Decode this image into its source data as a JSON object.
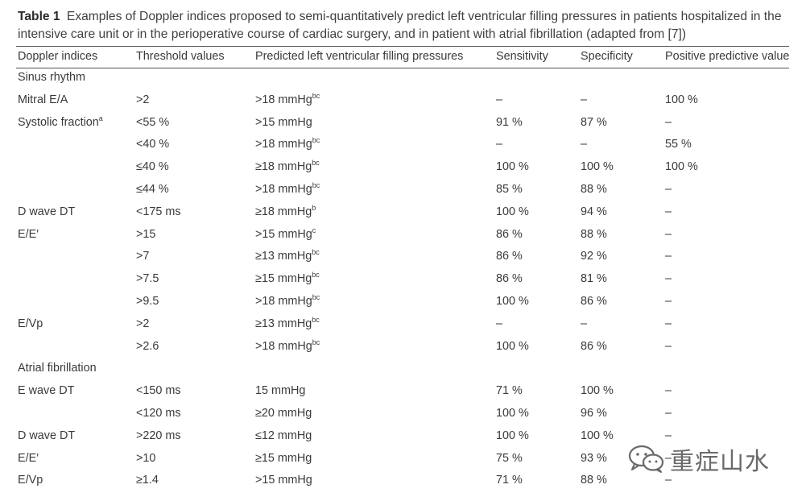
{
  "caption": {
    "label": "Table 1",
    "text": "Examples of Doppler indices proposed to semi-quantitatively predict left ventricular filling pressures in patients hospitalized in the intensive care unit or in the perioperative course of cardiac surgery, and in patient with atrial fibrillation (adapted from [7])"
  },
  "headers": {
    "doppler_indices": "Doppler indices",
    "threshold_values": "Threshold values",
    "predicted_pressures": "Predicted left ventricular filling pressures",
    "sensitivity": "Sensitivity",
    "specificity": "Specificity",
    "ppv": "Positive predictive value"
  },
  "sections": [
    {
      "title": "Sinus rhythm",
      "rows": [
        {
          "index": "Mitral E/A",
          "index_sup": "",
          "threshold": ">2",
          "pressure": ">18 mmHg",
          "pressure_sup": "bc",
          "sensitivity": "–",
          "specificity": "–",
          "ppv": "100 %"
        },
        {
          "index": "Systolic fraction",
          "index_sup": "a",
          "threshold": "<55 %",
          "pressure": ">15 mmHg",
          "pressure_sup": "",
          "sensitivity": "91 %",
          "specificity": "87 %",
          "ppv": "–"
        },
        {
          "index": "",
          "index_sup": "",
          "threshold": "<40 %",
          "pressure": ">18 mmHg",
          "pressure_sup": "bc",
          "sensitivity": "–",
          "specificity": "–",
          "ppv": "55 %"
        },
        {
          "index": "",
          "index_sup": "",
          "threshold": "≤40 %",
          "pressure": "≥18 mmHg",
          "pressure_sup": "bc",
          "sensitivity": "100 %",
          "specificity": "100 %",
          "ppv": "100 %"
        },
        {
          "index": "",
          "index_sup": "",
          "threshold": "≤44 %",
          "pressure": ">18 mmHg",
          "pressure_sup": "bc",
          "sensitivity": "85 %",
          "specificity": "88 %",
          "ppv": "–"
        },
        {
          "index": "D wave DT",
          "index_sup": "",
          "threshold": "<175 ms",
          "pressure": "≥18 mmHg",
          "pressure_sup": "b",
          "sensitivity": "100 %",
          "specificity": "94 %",
          "ppv": "–"
        },
        {
          "index": "E/E′",
          "index_sup": "",
          "threshold": ">15",
          "pressure": ">15 mmHg",
          "pressure_sup": "c",
          "sensitivity": "86 %",
          "specificity": "88 %",
          "ppv": "–"
        },
        {
          "index": "",
          "index_sup": "",
          "threshold": ">7",
          "pressure": "≥13 mmHg",
          "pressure_sup": "bc",
          "sensitivity": "86 %",
          "specificity": "92 %",
          "ppv": "–"
        },
        {
          "index": "",
          "index_sup": "",
          "threshold": ">7.5",
          "pressure": "≥15 mmHg",
          "pressure_sup": "bc",
          "sensitivity": "86 %",
          "specificity": "81 %",
          "ppv": "–"
        },
        {
          "index": "",
          "index_sup": "",
          "threshold": ">9.5",
          "pressure": ">18 mmHg",
          "pressure_sup": "bc",
          "sensitivity": "100 %",
          "specificity": "86 %",
          "ppv": "–"
        },
        {
          "index": "E/Vp",
          "index_sup": "",
          "threshold": ">2",
          "pressure": "≥13 mmHg",
          "pressure_sup": "bc",
          "sensitivity": "–",
          "specificity": "–",
          "ppv": "–"
        },
        {
          "index": "",
          "index_sup": "",
          "threshold": ">2.6",
          "pressure": ">18 mmHg",
          "pressure_sup": "bc",
          "sensitivity": "100 %",
          "specificity": "86 %",
          "ppv": "–"
        }
      ]
    },
    {
      "title": "Atrial fibrillation",
      "rows": [
        {
          "index": "E wave DT",
          "index_sup": "",
          "threshold": "<150 ms",
          "pressure": "15 mmHg",
          "pressure_sup": "",
          "sensitivity": "71 %",
          "specificity": "100 %",
          "ppv": "–"
        },
        {
          "index": "",
          "index_sup": "",
          "threshold": "<120 ms",
          "pressure": "≥20 mmHg",
          "pressure_sup": "",
          "sensitivity": "100 %",
          "specificity": "96 %",
          "ppv": "–"
        },
        {
          "index": "D wave DT",
          "index_sup": "",
          "threshold": ">220 ms",
          "pressure": "≤12 mmHg",
          "pressure_sup": "",
          "sensitivity": "100 %",
          "specificity": "100 %",
          "ppv": "–"
        },
        {
          "index": "E/E′",
          "index_sup": "",
          "threshold": ">10",
          "pressure": "≥15 mmHg",
          "pressure_sup": "",
          "sensitivity": "75 %",
          "specificity": "93 %",
          "ppv": "–"
        },
        {
          "index": "E/Vp",
          "index_sup": "",
          "threshold": "≥1.4",
          "pressure": ">15 mmHg",
          "pressure_sup": "",
          "sensitivity": "71 %",
          "specificity": "88 %",
          "ppv": "–"
        }
      ]
    }
  ],
  "watermark": {
    "text": "重症山水",
    "icon": "wechat-icon",
    "color": "#6a6a6a"
  }
}
